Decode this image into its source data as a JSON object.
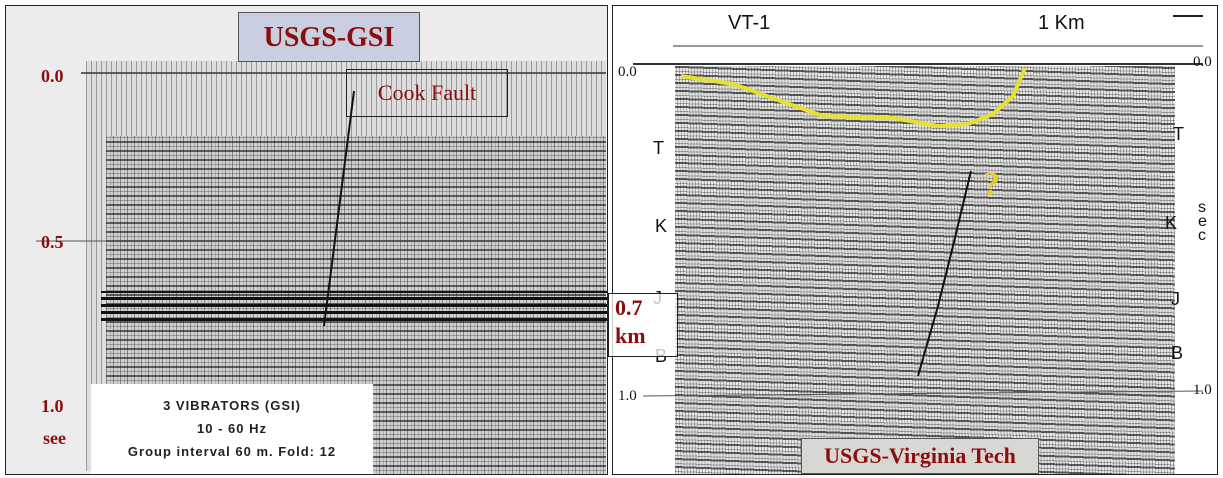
{
  "left_panel": {
    "title": "USGS-GSI",
    "time_labels": [
      "0.0",
      "0.5",
      "1.0"
    ],
    "unit": "see",
    "fault_label": "Cook Fault",
    "info": [
      "3 VIBRATORS (GSI)",
      "10 - 60 Hz",
      "Group interval 60 m.  Fold: 12"
    ]
  },
  "center_label": [
    "0.7",
    "km"
  ],
  "right_panel": {
    "title": "USGS-Virginia Tech",
    "line_name": "VT-1",
    "scale": "1 Km",
    "time_labels_left": [
      "0.0",
      "1.0"
    ],
    "time_labels_right": [
      "0.0",
      "1.0"
    ],
    "unit": "sec",
    "horizons_left": [
      "T",
      "K",
      "J",
      "B"
    ],
    "horizons_right": [
      "T",
      "K",
      "J",
      "B"
    ],
    "question": "?"
  }
}
